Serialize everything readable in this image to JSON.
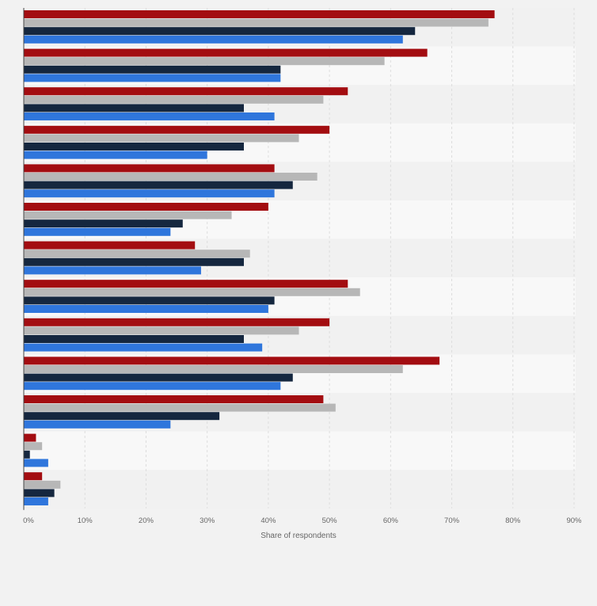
{
  "colors": {
    "background": "#f2f2f2",
    "row_band_light": "#f8f8f8",
    "row_band_dark": "#f1f1f1",
    "grid": "#dddddd",
    "axis": "#444444",
    "tick_label": "#666666"
  },
  "chart_data": {
    "type": "bar",
    "orientation": "horizontal",
    "title": "",
    "xlabel": "Share of respondents",
    "ylabel": "",
    "xlim": [
      0,
      90
    ],
    "x_ticks": [
      0,
      10,
      20,
      30,
      40,
      50,
      60,
      70,
      80,
      90
    ],
    "x_tick_labels": [
      "0%",
      "10%",
      "20%",
      "30%",
      "40%",
      "50%",
      "60%",
      "70%",
      "80%",
      "90%"
    ],
    "grid": true,
    "legend": "none visible",
    "categories": [
      "",
      "",
      "",
      "",
      "",
      "",
      "",
      "",
      "",
      "",
      "",
      "",
      ""
    ],
    "series": [
      {
        "color": "#a30d11",
        "values": [
          77,
          66,
          53,
          50,
          41,
          40,
          28,
          53,
          50,
          68,
          49,
          2,
          3
        ]
      },
      {
        "color": "#b7b7b7",
        "values": [
          76,
          59,
          49,
          45,
          48,
          34,
          37,
          55,
          45,
          62,
          51,
          3,
          6
        ]
      },
      {
        "color": "#15273f",
        "values": [
          64,
          42,
          36,
          36,
          44,
          26,
          36,
          41,
          36,
          44,
          32,
          1,
          5
        ]
      },
      {
        "color": "#2f76dc",
        "values": [
          62,
          42,
          41,
          30,
          41,
          24,
          29,
          40,
          39,
          42,
          24,
          4,
          4
        ]
      }
    ]
  }
}
